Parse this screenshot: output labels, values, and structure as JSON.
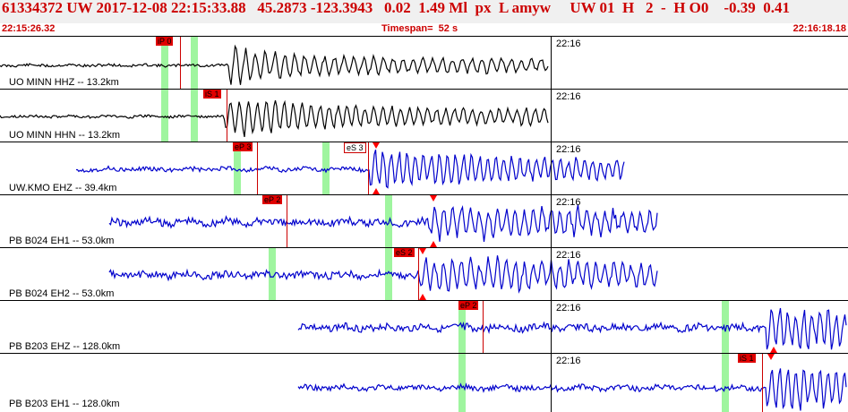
{
  "header": {
    "title": "61334372 UW 2017-12-08 22:15:33.88   45.2873 -123.3943   0.02  1.49 Ml  px  L amyw     UW 01  H   2  -  H O0    -0.39  0.41",
    "start_time": "22:15:26.32",
    "timespan": "Timespan=  52 s",
    "end_time": "22:16:18.18"
  },
  "colors": {
    "title_red": "#cc0000",
    "trace_black": "#000000",
    "trace_blue": "#0000cc",
    "pick_red": "#e00000",
    "pick_highlight_green": "#9ff59f"
  },
  "time_marker_label": "22:16",
  "panels": [
    {
      "channel": "UO MINN HHZ -- 13.2km",
      "picks": [
        "iP 0"
      ],
      "color": "black"
    },
    {
      "channel": "UO MINN HHN -- 13.2km",
      "picks": [
        "iS 1"
      ],
      "color": "black"
    },
    {
      "channel": "UW.KMO EHZ -- 39.4km",
      "picks": [
        "eP 3",
        "eS 3"
      ],
      "color": "blue"
    },
    {
      "channel": "PB B024 EH1 -- 53.0km",
      "picks": [
        "eP 2"
      ],
      "color": "blue"
    },
    {
      "channel": "PB B024 EH2 -- 53.0km",
      "picks": [
        "eS 2"
      ],
      "color": "blue"
    },
    {
      "channel": "PB B203 EHZ -- 128.0km",
      "picks": [
        "eP 2"
      ],
      "color": "blue"
    },
    {
      "channel": "PB B203 EH1 -- 128.0km",
      "picks": [
        "iS 1"
      ],
      "color": "blue"
    }
  ]
}
